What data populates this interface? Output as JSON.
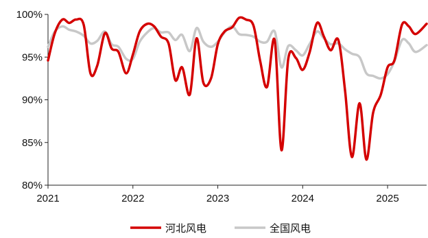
{
  "chart_data": {
    "type": "line",
    "title": "",
    "xlabel": "",
    "ylabel": "",
    "x_ticks": [
      "2021",
      "2022",
      "2023",
      "2024",
      "2025"
    ],
    "y_ticks": [
      "80%",
      "85%",
      "90%",
      "95%",
      "100%"
    ],
    "ylim": [
      80,
      100
    ],
    "grid": false,
    "legend_position": "bottom",
    "series": [
      {
        "name": "河北风电",
        "color": "#d40000",
        "points": [
          [
            2021.0,
            94.6
          ],
          [
            2021.08,
            97.8
          ],
          [
            2021.17,
            99.4
          ],
          [
            2021.25,
            99.0
          ],
          [
            2021.33,
            99.4
          ],
          [
            2021.42,
            98.8
          ],
          [
            2021.5,
            93.1
          ],
          [
            2021.58,
            94.0
          ],
          [
            2021.67,
            97.8
          ],
          [
            2021.75,
            96.0
          ],
          [
            2021.83,
            95.6
          ],
          [
            2021.92,
            93.1
          ],
          [
            2022.0,
            95.3
          ],
          [
            2022.08,
            98.0
          ],
          [
            2022.17,
            98.9
          ],
          [
            2022.25,
            98.6
          ],
          [
            2022.33,
            97.4
          ],
          [
            2022.42,
            96.6
          ],
          [
            2022.5,
            92.3
          ],
          [
            2022.58,
            93.8
          ],
          [
            2022.67,
            90.6
          ],
          [
            2022.75,
            97.2
          ],
          [
            2022.83,
            92.0
          ],
          [
            2022.92,
            92.5
          ],
          [
            2023.0,
            96.5
          ],
          [
            2023.08,
            98.0
          ],
          [
            2023.17,
            98.5
          ],
          [
            2023.25,
            99.6
          ],
          [
            2023.33,
            99.4
          ],
          [
            2023.42,
            98.7
          ],
          [
            2023.5,
            94.5
          ],
          [
            2023.58,
            91.5
          ],
          [
            2023.67,
            97.0
          ],
          [
            2023.75,
            84.1
          ],
          [
            2023.83,
            94.8
          ],
          [
            2023.92,
            94.9
          ],
          [
            2024.0,
            93.5
          ],
          [
            2024.08,
            95.5
          ],
          [
            2024.17,
            99.0
          ],
          [
            2024.25,
            97.4
          ],
          [
            2024.33,
            95.8
          ],
          [
            2024.42,
            97.0
          ],
          [
            2024.5,
            91.0
          ],
          [
            2024.58,
            83.3
          ],
          [
            2024.67,
            89.6
          ],
          [
            2024.75,
            83.0
          ],
          [
            2024.83,
            88.5
          ],
          [
            2024.92,
            90.6
          ],
          [
            2025.0,
            93.8
          ],
          [
            2025.08,
            94.6
          ],
          [
            2025.17,
            98.8
          ],
          [
            2025.25,
            98.6
          ],
          [
            2025.33,
            97.7
          ],
          [
            2025.46,
            98.9
          ]
        ]
      },
      {
        "name": "全国风电",
        "color": "#c8c8c8",
        "points": [
          [
            2021.0,
            96.2
          ],
          [
            2021.08,
            98.0
          ],
          [
            2021.17,
            98.6
          ],
          [
            2021.25,
            98.2
          ],
          [
            2021.33,
            98.0
          ],
          [
            2021.42,
            97.5
          ],
          [
            2021.5,
            96.6
          ],
          [
            2021.58,
            96.9
          ],
          [
            2021.67,
            98.0
          ],
          [
            2021.75,
            96.5
          ],
          [
            2021.83,
            96.2
          ],
          [
            2021.92,
            94.8
          ],
          [
            2022.0,
            94.8
          ],
          [
            2022.08,
            96.8
          ],
          [
            2022.17,
            97.9
          ],
          [
            2022.25,
            98.4
          ],
          [
            2022.33,
            97.9
          ],
          [
            2022.42,
            97.9
          ],
          [
            2022.5,
            97.0
          ],
          [
            2022.58,
            97.6
          ],
          [
            2022.67,
            95.7
          ],
          [
            2022.75,
            98.4
          ],
          [
            2022.83,
            96.8
          ],
          [
            2022.92,
            96.2
          ],
          [
            2023.0,
            96.8
          ],
          [
            2023.08,
            97.9
          ],
          [
            2023.17,
            98.6
          ],
          [
            2023.25,
            97.7
          ],
          [
            2023.33,
            97.6
          ],
          [
            2023.42,
            97.4
          ],
          [
            2023.5,
            96.8
          ],
          [
            2023.58,
            96.8
          ],
          [
            2023.67,
            98.0
          ],
          [
            2023.75,
            93.8
          ],
          [
            2023.83,
            96.3
          ],
          [
            2023.92,
            95.8
          ],
          [
            2024.0,
            95.2
          ],
          [
            2024.08,
            96.5
          ],
          [
            2024.17,
            98.0
          ],
          [
            2024.25,
            97.2
          ],
          [
            2024.33,
            96.5
          ],
          [
            2024.42,
            96.6
          ],
          [
            2024.5,
            95.9
          ],
          [
            2024.58,
            95.4
          ],
          [
            2024.67,
            95.0
          ],
          [
            2024.75,
            93.1
          ],
          [
            2024.83,
            92.8
          ],
          [
            2024.92,
            92.5
          ],
          [
            2025.0,
            93.0
          ],
          [
            2025.08,
            94.5
          ],
          [
            2025.17,
            97.0
          ],
          [
            2025.25,
            96.6
          ],
          [
            2025.33,
            95.6
          ],
          [
            2025.46,
            96.4
          ]
        ]
      }
    ]
  }
}
